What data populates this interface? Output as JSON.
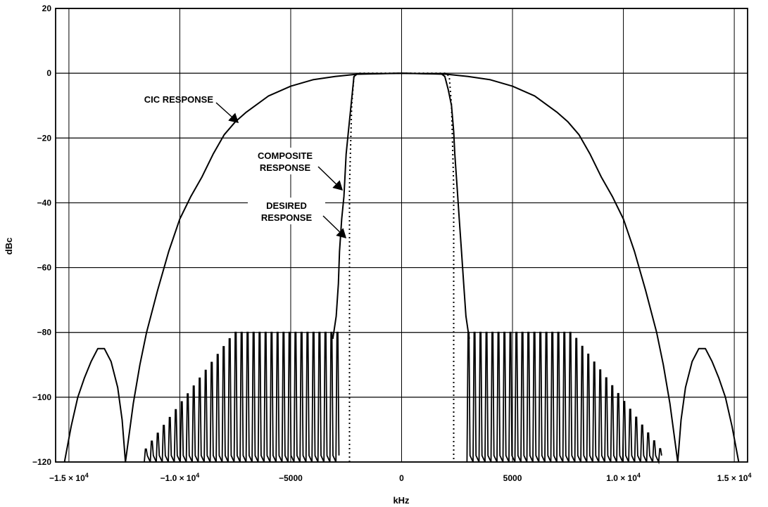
{
  "chart_data": {
    "type": "line",
    "title": "",
    "xlabel": "kHz",
    "ylabel": "dBc",
    "xlim": [
      -15600,
      15600
    ],
    "ylim": [
      -120,
      20
    ],
    "grid": true,
    "x_ticks": [
      {
        "value": -15000,
        "label": "−1.5 × 10",
        "exp": "4"
      },
      {
        "value": -10000,
        "label": "−1.0 × 10",
        "exp": "4"
      },
      {
        "value": -5000,
        "label": "−5000",
        "exp": ""
      },
      {
        "value": 0,
        "label": "0",
        "exp": ""
      },
      {
        "value": 5000,
        "label": "5000",
        "exp": ""
      },
      {
        "value": 10000,
        "label": "1.0 × 10",
        "exp": "4"
      },
      {
        "value": 15000,
        "label": "1.5 × 10",
        "exp": "4"
      }
    ],
    "y_ticks": [
      {
        "value": 20,
        "label": "20"
      },
      {
        "value": 0,
        "label": "0"
      },
      {
        "value": -20,
        "label": "−20"
      },
      {
        "value": -40,
        "label": "−40"
      },
      {
        "value": -60,
        "label": "−60"
      },
      {
        "value": -80,
        "label": "−80"
      },
      {
        "value": -100,
        "label": "−100"
      },
      {
        "value": -120,
        "label": "−120"
      }
    ],
    "series": [
      {
        "key": "cic",
        "style": "solid",
        "points": [
          [
            -15200,
            -120
          ],
          [
            -14900,
            -109
          ],
          [
            -14600,
            -100
          ],
          [
            -14300,
            -94
          ],
          [
            -14000,
            -89
          ],
          [
            -13700,
            -85
          ],
          [
            -13400,
            -85
          ],
          [
            -13100,
            -89
          ],
          [
            -12800,
            -97
          ],
          [
            -12600,
            -107
          ],
          [
            -12450,
            -120
          ],
          [
            -12100,
            -102
          ],
          [
            -11800,
            -90
          ],
          [
            -11500,
            -80
          ],
          [
            -11000,
            -67
          ],
          [
            -10500,
            -55
          ],
          [
            -10000,
            -45
          ],
          [
            -9500,
            -38
          ],
          [
            -9000,
            -32
          ],
          [
            -8500,
            -25
          ],
          [
            -8000,
            -19
          ],
          [
            -7500,
            -15
          ],
          [
            -7000,
            -12
          ],
          [
            -6000,
            -7
          ],
          [
            -5000,
            -4
          ],
          [
            -4000,
            -2
          ],
          [
            -3000,
            -1
          ],
          [
            -2000,
            -0.3
          ],
          [
            0,
            0
          ],
          [
            2000,
            -0.3
          ],
          [
            3000,
            -1
          ],
          [
            4000,
            -2
          ],
          [
            5000,
            -4
          ],
          [
            6000,
            -7
          ],
          [
            7000,
            -12
          ],
          [
            7500,
            -15
          ],
          [
            8000,
            -19
          ],
          [
            8500,
            -25
          ],
          [
            9000,
            -32
          ],
          [
            9500,
            -38
          ],
          [
            10000,
            -45
          ],
          [
            10500,
            -55
          ],
          [
            11000,
            -67
          ],
          [
            11500,
            -80
          ],
          [
            11800,
            -90
          ],
          [
            12100,
            -102
          ],
          [
            12450,
            -120
          ],
          [
            12600,
            -107
          ],
          [
            12800,
            -97
          ],
          [
            13100,
            -89
          ],
          [
            13400,
            -85
          ],
          [
            13700,
            -85
          ],
          [
            14000,
            -89
          ],
          [
            14300,
            -94
          ],
          [
            14600,
            -100
          ],
          [
            14900,
            -109
          ],
          [
            15200,
            -120
          ]
        ]
      },
      {
        "key": "composite",
        "style": "solid",
        "points": [
          [
            -3100,
            -82
          ],
          [
            -2950,
            -75
          ],
          [
            -2850,
            -65
          ],
          [
            -2800,
            -55
          ],
          [
            -2700,
            -45
          ],
          [
            -2600,
            -38
          ],
          [
            -2500,
            -25
          ],
          [
            -2400,
            -18
          ],
          [
            -2250,
            -8
          ],
          [
            -2150,
            -1
          ],
          [
            -2000,
            -0.2
          ],
          [
            0,
            0
          ],
          [
            1800,
            -0.2
          ],
          [
            1950,
            -1
          ],
          [
            2100,
            -5
          ],
          [
            2250,
            -10
          ],
          [
            2350,
            -18
          ],
          [
            2400,
            -25
          ],
          [
            2500,
            -35
          ],
          [
            2600,
            -45
          ],
          [
            2700,
            -55
          ],
          [
            2800,
            -65
          ],
          [
            2900,
            -75
          ],
          [
            3050,
            -82
          ]
        ]
      },
      {
        "key": "desired",
        "style": "dotted",
        "points": [
          [
            -2350,
            -120
          ],
          [
            -2350,
            -35
          ],
          [
            -2250,
            -10
          ],
          [
            -2150,
            -1
          ],
          [
            -2000,
            0
          ],
          [
            0,
            0
          ],
          [
            2000,
            0
          ],
          [
            2150,
            -1
          ],
          [
            2250,
            -10
          ],
          [
            2350,
            -35
          ],
          [
            2350,
            -120
          ]
        ]
      }
    ],
    "stopband_ripple": {
      "floor": -120,
      "lobe_peak": -80,
      "left_range": [
        -11600,
        -2950
      ],
      "right_range": [
        2950,
        11600
      ],
      "flat_edge": 7600,
      "lobe_spacing": 270
    },
    "annotations": [
      {
        "key": "cic",
        "lines": [
          "CIC RESPONSE"
        ]
      },
      {
        "key": "composite",
        "lines": [
          "COMPOSITE",
          "RESPONSE"
        ]
      },
      {
        "key": "desired",
        "lines": [
          "DESIRED",
          "RESPONSE"
        ]
      }
    ]
  }
}
